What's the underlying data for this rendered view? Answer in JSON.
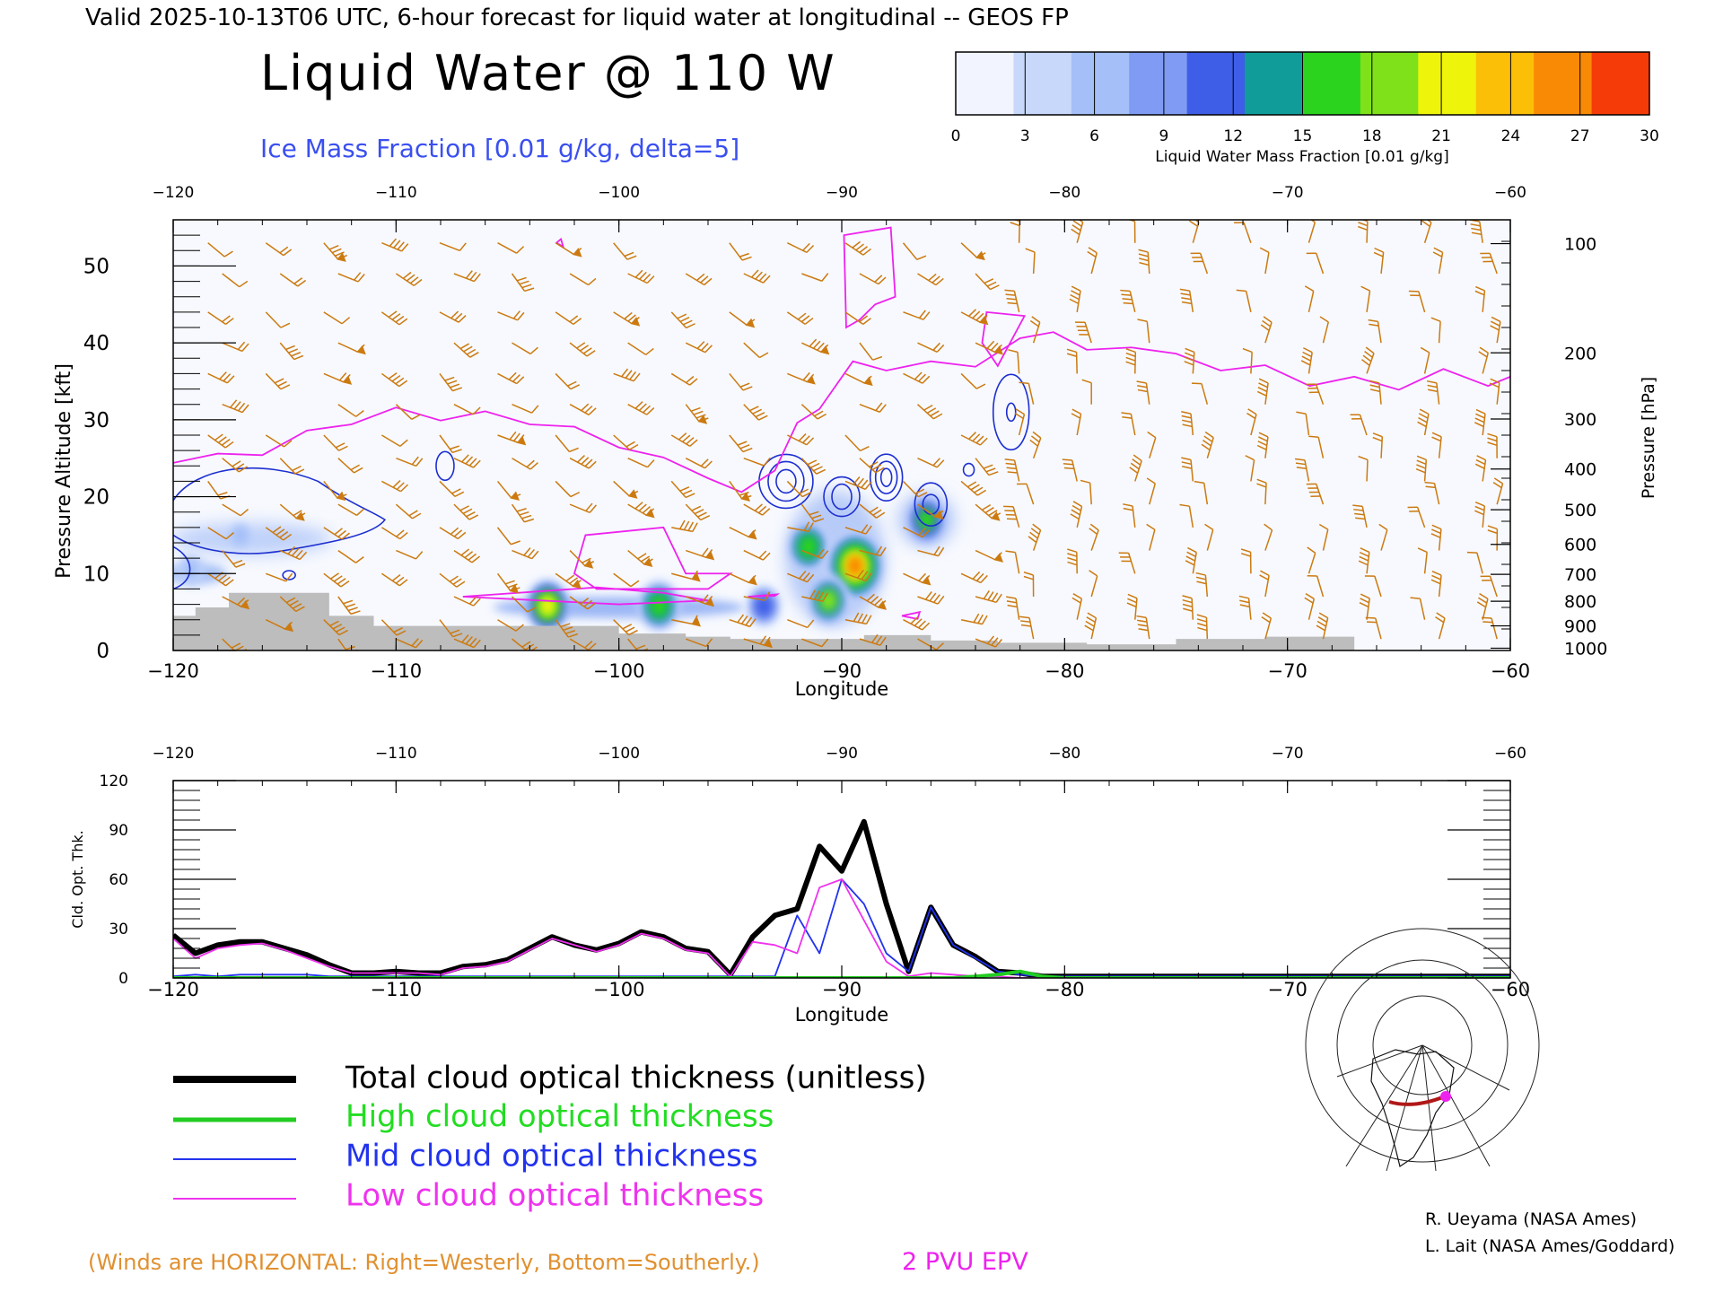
{
  "header": {
    "valid_line": "Valid 2025-10-13T06 UTC, 6-hour forecast for liquid water at longitudinal -- GEOS FP",
    "title": "Liquid Water @ 110 W",
    "subtitle": "Ice Mass Fraction [0.01 g/kg, delta=5]"
  },
  "colorbar": {
    "label": "Liquid Water Mass Fraction [0.01 g/kg]",
    "ticks": [
      "0",
      "3",
      "6",
      "9",
      "12",
      "15",
      "18",
      "21",
      "24",
      "27",
      "30"
    ],
    "colors": [
      "#f2f5ff",
      "#c8d8fb",
      "#a5c0f8",
      "#7f9bf3",
      "#3f5ee8",
      "#109d9a",
      "#2bd31e",
      "#7fe11a",
      "#eef40a",
      "#fbbf07",
      "#f98a05",
      "#f53b08"
    ]
  },
  "colors": {
    "wind_barb": "#cc7a10",
    "epv": "#ee22ee",
    "ice_contour": "#1d2fd0",
    "terrain": "#bdbdbd",
    "total": "#000000",
    "high": "#22cc22",
    "mid": "#2233ee",
    "low": "#ee33ee"
  },
  "chart_data": [
    {
      "type": "heatmap",
      "title": "Liquid Water @ 110 W",
      "xlabel": "Longitude",
      "ylabel": "Pressure Altitude [kft]",
      "ylabel_right": "Pressure [hPa]",
      "xlim": [
        -120,
        -60
      ],
      "ylim": [
        0,
        56
      ],
      "x_ticks": [
        "−120",
        "−110",
        "−100",
        "−90",
        "−80",
        "−70",
        "−60"
      ],
      "x_tick_values": [
        -120,
        -110,
        -100,
        -90,
        -80,
        -70,
        -60
      ],
      "y_ticks": [
        "0",
        "10",
        "20",
        "30",
        "40",
        "50"
      ],
      "y_tick_values": [
        0,
        10,
        20,
        30,
        40,
        50
      ],
      "pressure_ticks": [
        {
          "label": "100",
          "kft": 52.9
        },
        {
          "label": "200",
          "kft": 38.7
        },
        {
          "label": "300",
          "kft": 30.1
        },
        {
          "label": "400",
          "kft": 23.6
        },
        {
          "label": "500",
          "kft": 18.3
        },
        {
          "label": "600",
          "kft": 13.8
        },
        {
          "label": "700",
          "kft": 9.9
        },
        {
          "label": "800",
          "kft": 6.4
        },
        {
          "label": "900",
          "kft": 3.2
        },
        {
          "label": "1000",
          "kft": 0.3
        }
      ],
      "liquid_water_blobs": [
        {
          "lon": -91.5,
          "kft": 13.5,
          "value": 17
        },
        {
          "lon": -89.4,
          "kft": 11,
          "value": 26
        },
        {
          "lon": -90.6,
          "kft": 6.5,
          "value": 19
        },
        {
          "lon": -86.2,
          "kft": 17,
          "value": 16
        },
        {
          "lon": -103.2,
          "kft": 5.8,
          "value": 20
        },
        {
          "lon": -98.2,
          "kft": 5.8,
          "value": 17
        },
        {
          "lon": -93.5,
          "kft": 5.8,
          "value": 12
        },
        {
          "lon": -117,
          "kft": 15,
          "value": 5
        },
        {
          "lon": -119.2,
          "kft": 10.5,
          "value": 7
        }
      ],
      "epv_2pvu_kft": [
        [
          -120,
          25
        ],
        [
          -118,
          25
        ],
        [
          -116,
          26
        ],
        [
          -114,
          28
        ],
        [
          -112,
          30
        ],
        [
          -110,
          31
        ],
        [
          -108,
          30.5
        ],
        [
          -106,
          30.5
        ],
        [
          -104,
          30
        ],
        [
          -102,
          28.5
        ],
        [
          -100,
          27
        ],
        [
          -98,
          24.5
        ],
        [
          -96,
          23
        ],
        [
          -94.5,
          20
        ],
        [
          -93,
          24
        ],
        [
          -92,
          29
        ],
        [
          -91,
          32
        ],
        [
          -89.5,
          37
        ],
        [
          -88,
          37
        ],
        [
          -86,
          37
        ],
        [
          -84,
          37.5
        ],
        [
          -82,
          40
        ],
        [
          -80.5,
          42
        ],
        [
          -79,
          38.5
        ],
        [
          -77,
          40
        ],
        [
          -75,
          38
        ],
        [
          -73,
          37
        ],
        [
          -71,
          36.5
        ],
        [
          -69,
          35
        ],
        [
          -67,
          35
        ],
        [
          -65,
          34.5
        ],
        [
          -63,
          36
        ],
        [
          -61,
          35
        ],
        [
          -60,
          35
        ]
      ],
      "terrain_kft": [
        [
          -120,
          4.5
        ],
        [
          -119,
          5.6
        ],
        [
          -117.5,
          7.5
        ],
        [
          -114,
          7.5
        ],
        [
          -113,
          4.5
        ],
        [
          -111,
          3.2
        ],
        [
          -105,
          3.2
        ],
        [
          -102,
          3.2
        ],
        [
          -100,
          2.2
        ],
        [
          -97,
          1.8
        ],
        [
          -95,
          1.5
        ],
        [
          -91,
          1.5
        ],
        [
          -89,
          2
        ],
        [
          -86,
          1.3
        ],
        [
          -83,
          1
        ],
        [
          -79,
          0.8
        ],
        [
          -75,
          1.5
        ],
        [
          -71,
          1.8
        ],
        [
          -67,
          1.8
        ],
        [
          -67,
          0
        ]
      ]
    },
    {
      "type": "line",
      "xlabel": "Longitude",
      "ylabel": "Cld. Opt. Thk.",
      "xlim": [
        -120,
        -60
      ],
      "ylim": [
        0,
        120
      ],
      "x_ticks": [
        "−120",
        "−110",
        "−100",
        "−90",
        "−80",
        "−70",
        "−60"
      ],
      "x_tick_values": [
        -120,
        -110,
        -100,
        -90,
        -80,
        -70,
        -60
      ],
      "y_ticks": [
        "0",
        "30",
        "60",
        "90",
        "120"
      ],
      "y_tick_values": [
        0,
        30,
        60,
        90,
        120
      ],
      "x": [
        -120,
        -119,
        -118,
        -117,
        -116,
        -115,
        -114,
        -113,
        -112,
        -111,
        -110,
        -109,
        -108,
        -107,
        -106,
        -105,
        -104,
        -103,
        -102,
        -101,
        -100,
        -99,
        -98,
        -97,
        -96,
        -95,
        -94,
        -93,
        -92,
        -91,
        -90,
        -89,
        -88,
        -87,
        -86,
        -85,
        -84,
        -83,
        -82,
        -81,
        -80,
        -75,
        -70,
        -65,
        -60
      ],
      "series": [
        {
          "name": "Total cloud optical thickness (unitless)",
          "values": [
            26,
            15,
            20,
            22,
            22,
            18,
            14,
            8,
            3,
            3,
            4,
            3,
            3,
            7,
            8,
            11,
            18,
            25,
            20,
            17,
            21,
            28,
            25,
            18,
            16,
            2,
            25,
            38,
            42,
            80,
            65,
            95,
            45,
            4,
            43,
            20,
            13,
            4,
            3,
            1,
            1,
            1,
            1,
            1,
            1
          ]
        },
        {
          "name": "High cloud optical thickness",
          "values": [
            0,
            0,
            0,
            0,
            0,
            0,
            0,
            0,
            0,
            0,
            0,
            0,
            0,
            0,
            0,
            0,
            0,
            0,
            0,
            0,
            0,
            0,
            0,
            0,
            0,
            0,
            0,
            0,
            0,
            0,
            0,
            0,
            0,
            0,
            0,
            0,
            1,
            2,
            4,
            1,
            0,
            0,
            0,
            0,
            0
          ]
        },
        {
          "name": "Mid cloud optical thickness",
          "values": [
            1,
            2,
            1,
            2,
            2,
            2,
            2,
            1,
            1,
            1,
            1,
            1,
            1,
            1,
            1,
            1,
            1,
            1,
            1,
            1,
            1,
            1,
            1,
            1,
            1,
            1,
            1,
            1,
            38,
            15,
            60,
            45,
            15,
            4,
            43,
            20,
            12,
            4,
            2,
            1,
            1,
            1,
            1,
            1,
            1
          ]
        },
        {
          "name": "Low cloud optical thickness",
          "values": [
            24,
            12,
            18,
            20,
            21,
            17,
            12,
            7,
            3,
            3,
            3,
            3,
            2,
            6,
            7,
            10,
            17,
            24,
            20,
            16,
            20,
            27,
            24,
            17,
            15,
            1,
            22,
            20,
            15,
            55,
            60,
            35,
            10,
            1,
            3,
            2,
            1,
            1,
            0,
            0,
            0,
            0,
            0,
            0,
            0
          ]
        }
      ]
    }
  ],
  "legend": {
    "total": "Total cloud optical thickness (unitless)",
    "high": "High cloud optical thickness",
    "mid": "Mid cloud optical thickness",
    "low": "Low cloud optical thickness"
  },
  "footer": {
    "winds_note": "(Winds are HORIZONTAL: Right=Westerly, Bottom=Southerly.)",
    "epv_label": "2 PVU EPV",
    "credit1": "R. Ueyama (NASA Ames)",
    "credit2": "L. Lait (NASA Ames/Goddard)"
  }
}
